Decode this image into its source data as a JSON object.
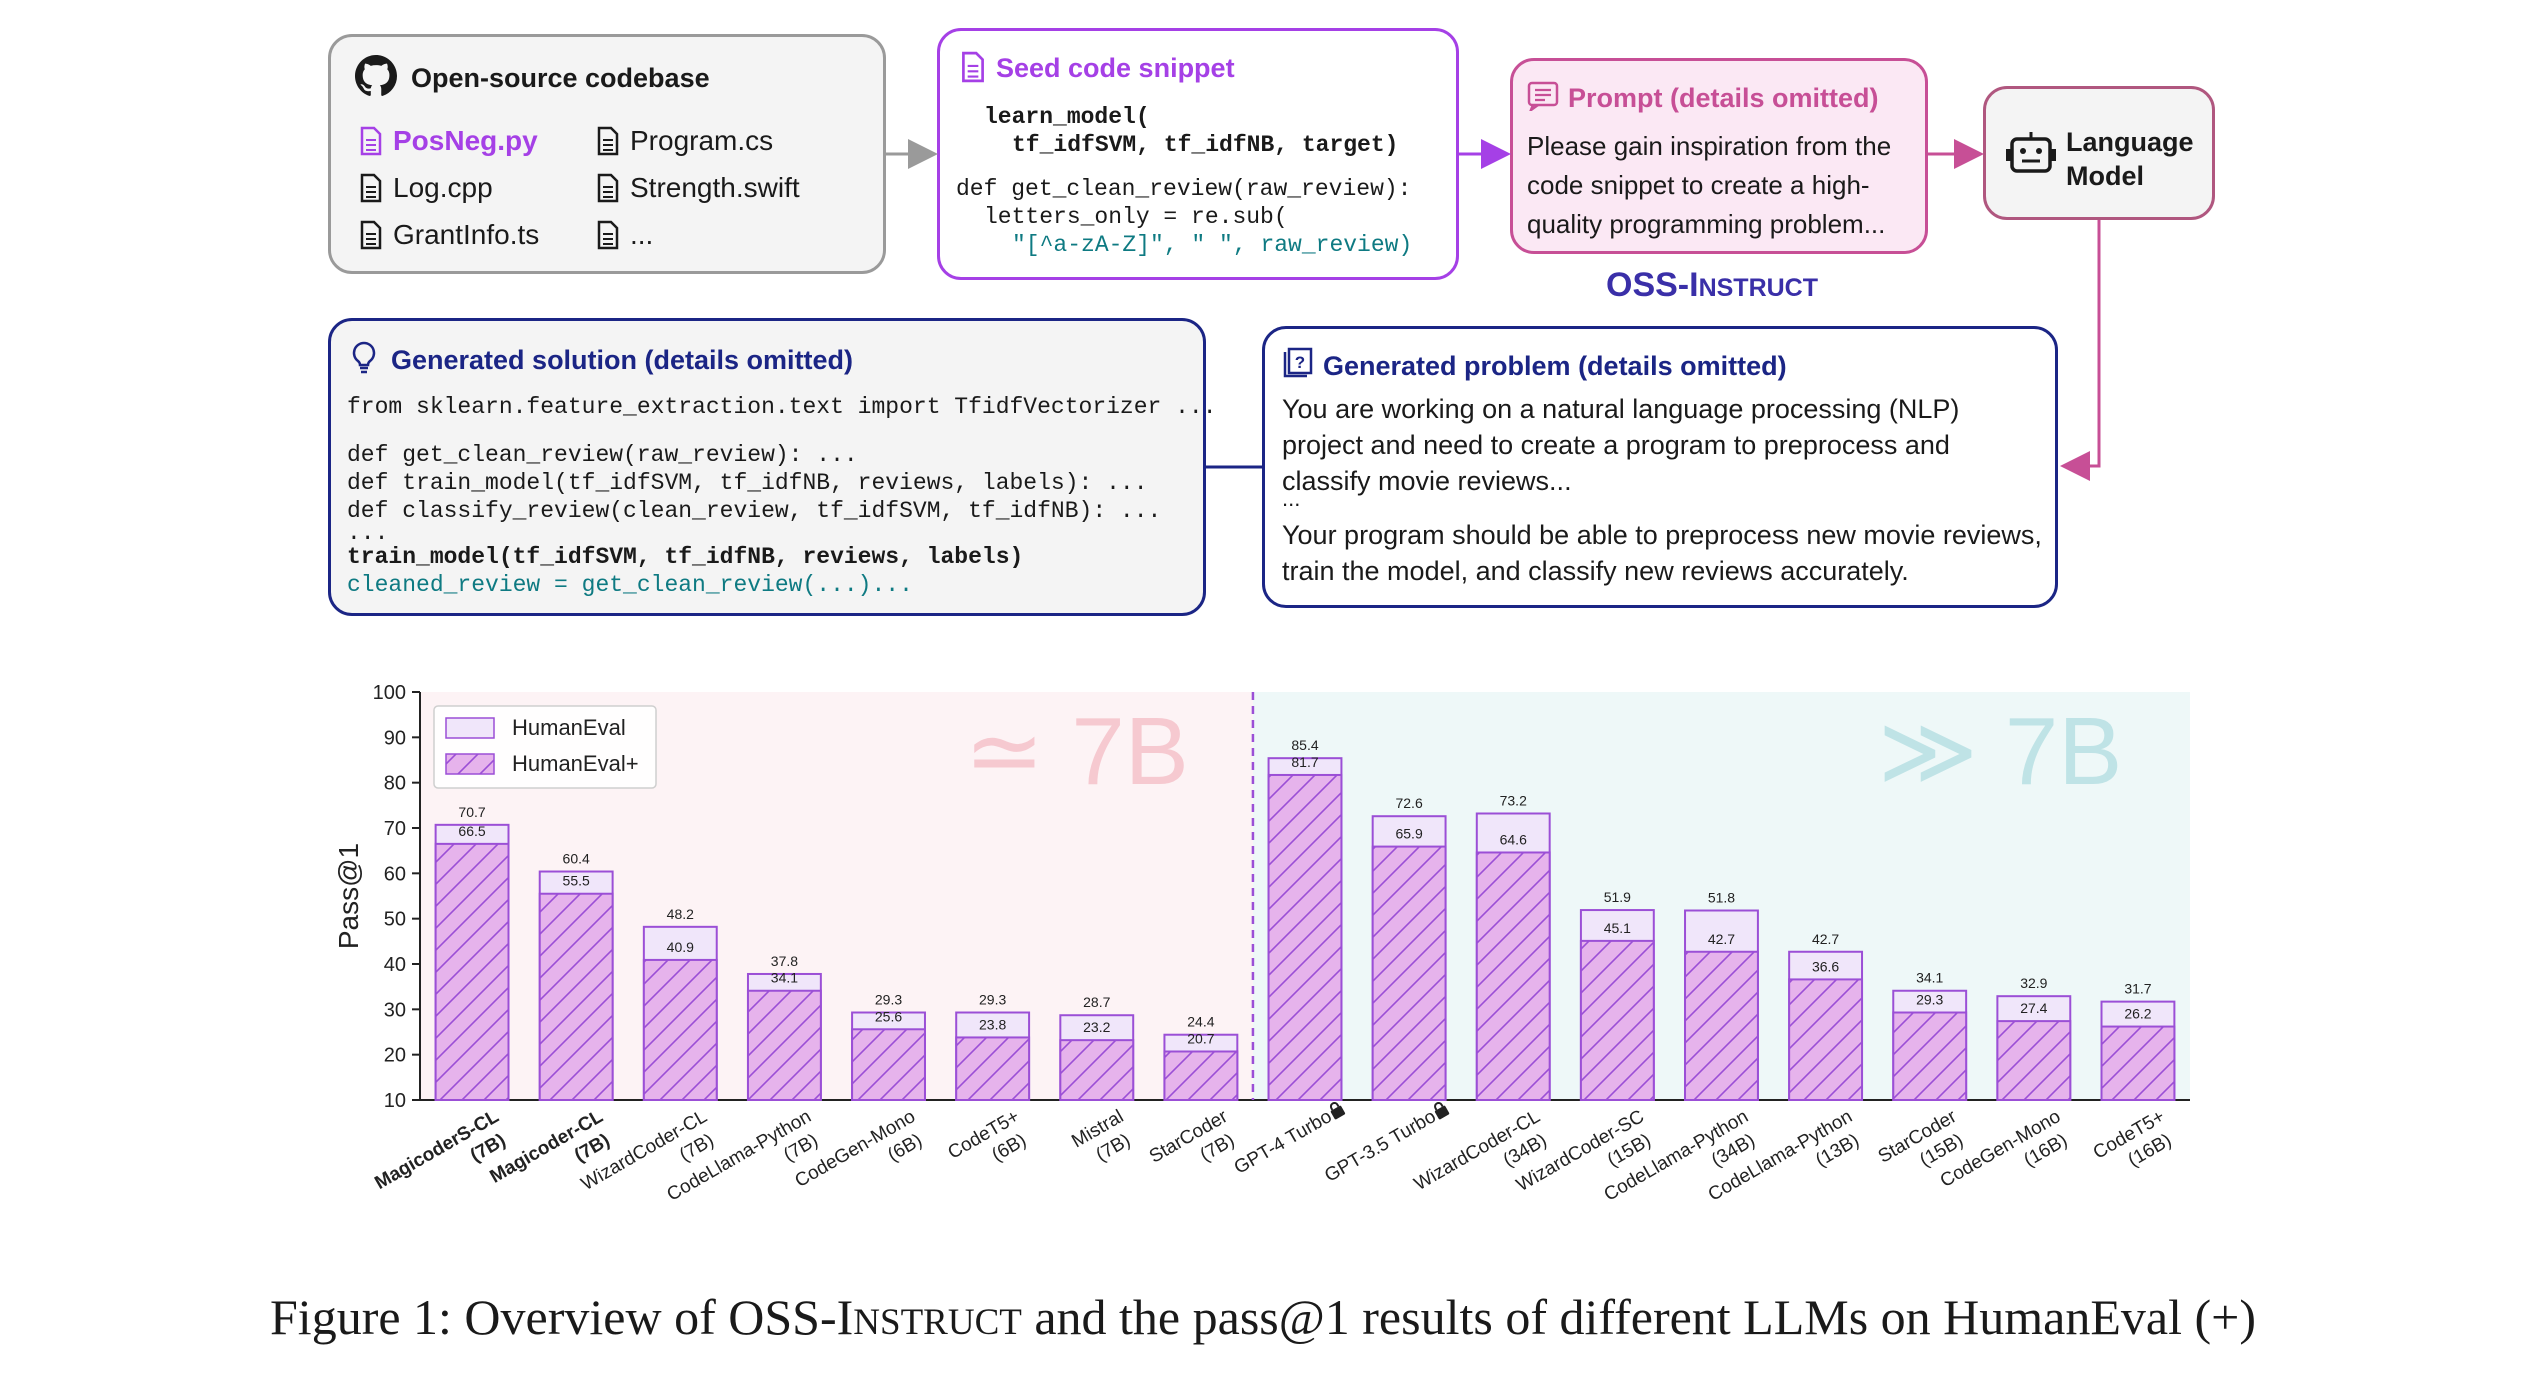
{
  "diagram": {
    "codebase": {
      "title": "Open-source codebase",
      "files": [
        "PosNeg.py",
        "Program.cs",
        "Log.cpp",
        "Strength.swift",
        "GrantInfo.ts",
        "..."
      ]
    },
    "seed": {
      "title": "Seed code snippet",
      "lines": [
        "learn_model(",
        "tf_idfSVM, tf_idfNB, target)",
        "def get_clean_review(raw_review):",
        "letters_only = re.sub(",
        "\"[^a-zA-Z]\", \" \", raw_review)"
      ]
    },
    "prompt": {
      "title": "Prompt (details omitted)",
      "text": "Please gain inspiration from the code snippet to create a high-quality programming problem..."
    },
    "lm": {
      "title": "Language Model"
    },
    "oss_label": {
      "main": "OSS-I",
      "small": "NSTRUCT"
    },
    "solution": {
      "title": "Generated solution (details omitted)",
      "lines": [
        "from sklearn.feature_extraction.text import TfidfVectorizer ...",
        "def get_clean_review(raw_review): ...",
        "def train_model(tf_idfSVM, tf_idfNB, reviews, labels): ...",
        "def classify_review(clean_review, tf_idfSVM, tf_idfNB): ...",
        "...",
        "train_model(tf_idfSVM, tf_idfNB, reviews, labels)",
        "cleaned_review = get_clean_review(...)..."
      ]
    },
    "problem": {
      "title": "Generated problem (details omitted)",
      "para1": "You are working on a natural language processing (NLP) project and need to create a program to preprocess and classify movie reviews...",
      "ellipsis": "...",
      "para2": "Your program should be able to preprocess new movie reviews, train the model, and classify new reviews accurately."
    }
  },
  "chart_data": {
    "type": "bar",
    "ylabel": "Pass@1",
    "ylim": [
      10,
      100
    ],
    "yticks": [
      10,
      20,
      30,
      40,
      50,
      60,
      70,
      80,
      90,
      100
    ],
    "region_labels": [
      "≃ 7B",
      "≫ 7B"
    ],
    "legend": [
      "HumanEval",
      "HumanEval+"
    ],
    "categories": [
      {
        "name": "MagicoderS-CL",
        "size": "(7B)",
        "bold": true
      },
      {
        "name": "Magicoder-CL",
        "size": "(7B)",
        "bold": true
      },
      {
        "name": "WizardCoder-CL",
        "size": "(7B)"
      },
      {
        "name": "CodeLlama-Python",
        "size": "(7B)"
      },
      {
        "name": "CodeGen-Mono",
        "size": "(6B)"
      },
      {
        "name": "CodeT5+",
        "size": "(6B)"
      },
      {
        "name": "Mistral",
        "size": "(7B)"
      },
      {
        "name": "StarCoder",
        "size": "(7B)"
      },
      {
        "name": "GPT-4 Turbo",
        "size": "",
        "lock": true
      },
      {
        "name": "GPT-3.5 Turbo",
        "size": "",
        "lock": true
      },
      {
        "name": "WizardCoder-CL",
        "size": "(34B)"
      },
      {
        "name": "WizardCoder-SC",
        "size": "(15B)"
      },
      {
        "name": "CodeLlama-Python",
        "size": "(34B)"
      },
      {
        "name": "CodeLlama-Python",
        "size": "(13B)"
      },
      {
        "name": "StarCoder",
        "size": "(15B)"
      },
      {
        "name": "CodeGen-Mono",
        "size": "(16B)"
      },
      {
        "name": "CodeT5+",
        "size": "(16B)"
      }
    ],
    "series": [
      {
        "name": "HumanEval",
        "values": [
          70.7,
          60.4,
          48.2,
          37.8,
          29.3,
          29.3,
          28.7,
          24.4,
          85.4,
          72.6,
          73.2,
          51.9,
          51.8,
          42.7,
          34.1,
          32.9,
          31.7
        ]
      },
      {
        "name": "HumanEval+",
        "values": [
          66.5,
          55.5,
          40.9,
          34.1,
          25.6,
          23.8,
          23.2,
          20.7,
          81.7,
          65.9,
          64.6,
          45.1,
          42.7,
          36.6,
          29.3,
          27.4,
          26.2
        ]
      }
    ],
    "split_after_index": 7,
    "grid": false,
    "legend_position": "top-left"
  },
  "caption": {
    "prefix": "Figure 1: Overview of OSS-I",
    "small": "NSTRUCT",
    "suffix": " and the pass@1 results of different LLMs on HumanEval (+)"
  },
  "colors": {
    "purple": "#a540e6",
    "pink": "#c74f96",
    "navy": "#1b2585",
    "teal": "#0e7a82",
    "bar_fill": "#e6b3ec",
    "bar_outer": "#f0e6fa",
    "bar_stroke": "#9b4fd6"
  }
}
